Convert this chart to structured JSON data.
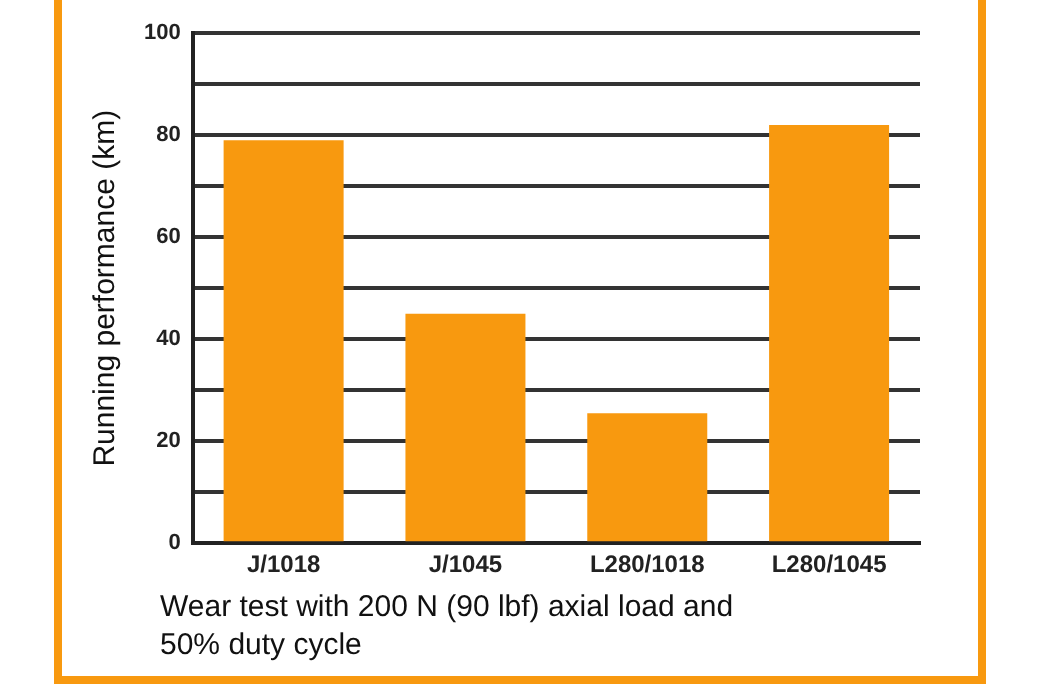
{
  "chart_data": {
    "type": "bar",
    "xlabel": "Wear test with 200 N (90 lbf) axial load and 50% duty cycle",
    "ylabel": "Running performance (km)",
    "categories": [
      "J/1018",
      "J/1045",
      "L280/1018",
      "L280/1045"
    ],
    "values": [
      79,
      45,
      25.5,
      82
    ],
    "color": "#f8990f",
    "ylim": [
      0,
      100
    ],
    "yticks": [
      0,
      {
        "value": 10,
        "label": null
      },
      20,
      {
        "value": 30,
        "label": null
      },
      40,
      {
        "value": 50,
        "label": null
      },
      60,
      {
        "value": 70,
        "label": null
      },
      80,
      {
        "value": 90,
        "label": null
      },
      100
    ],
    "grid": "y"
  }
}
